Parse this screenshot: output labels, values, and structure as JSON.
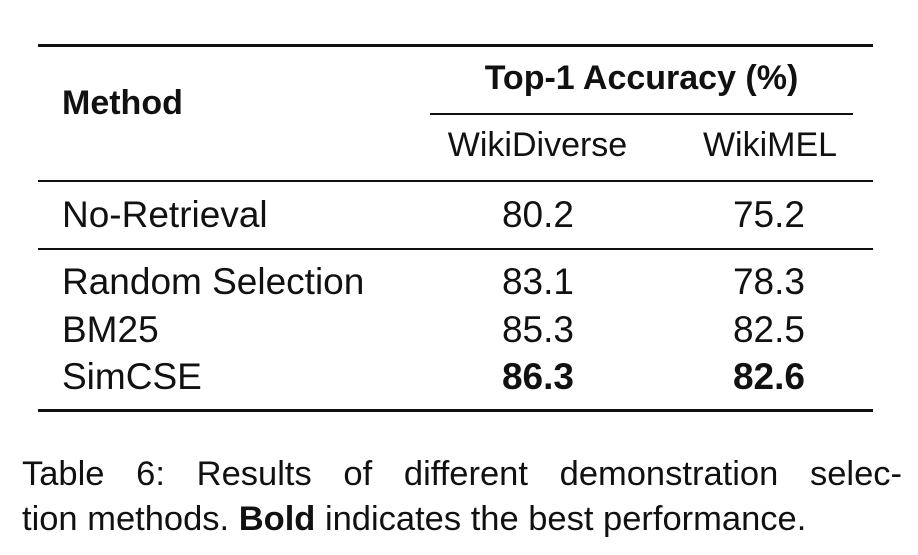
{
  "table": {
    "header": {
      "method_label": "Method",
      "group_label": "Top-1 Accuracy (%)",
      "columns": [
        "WikiDiverse",
        "WikiMEL"
      ]
    },
    "rows": [
      {
        "method": "No-Retrieval",
        "values": [
          "80.2",
          "75.2"
        ],
        "bold": [
          false,
          false
        ]
      },
      {
        "method": "Random Selection",
        "values": [
          "83.1",
          "78.3"
        ],
        "bold": [
          false,
          false
        ]
      },
      {
        "method": "BM25",
        "values": [
          "85.3",
          "82.5"
        ],
        "bold": [
          false,
          false
        ]
      },
      {
        "method": "SimCSE",
        "values": [
          "86.3",
          "82.6"
        ],
        "bold": [
          true,
          true
        ]
      }
    ]
  },
  "caption": {
    "line1": "Table 6: Results of different demonstration selec-",
    "line2_pre": "tion methods. ",
    "line2_bold": "Bold",
    "line2_post": " indicates the best performance."
  }
}
